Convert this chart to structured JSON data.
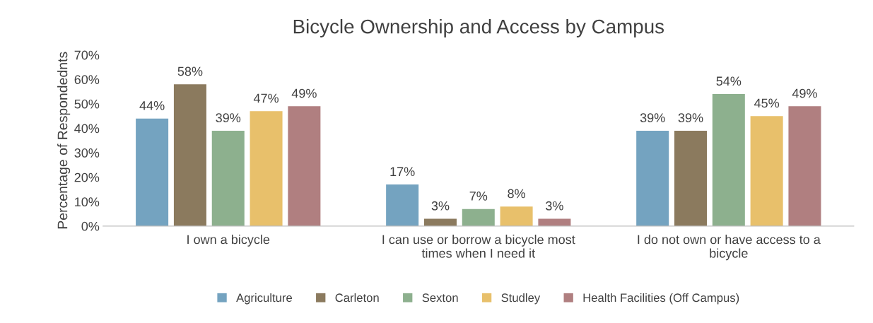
{
  "chart_data": {
    "type": "bar",
    "title": "Bicycle Ownership and Access by Campus",
    "ylabel": "Percentage of Respondednts",
    "categories": [
      "I own a bicycle",
      "I can use or borrow a bicycle most times when I need it",
      "I do not own or have access to a bicycle"
    ],
    "series": [
      {
        "name": "Agriculture",
        "color": "#74a3c0",
        "values": [
          44,
          17,
          39
        ],
        "value_labels": [
          "44%",
          "17%",
          "39%"
        ]
      },
      {
        "name": "Carleton",
        "color": "#8b7a5e",
        "values": [
          58,
          3,
          39
        ],
        "value_labels": [
          "58%",
          "3%",
          "39%"
        ]
      },
      {
        "name": "Sexton",
        "color": "#8db08e",
        "values": [
          39,
          7,
          54
        ],
        "value_labels": [
          "39%",
          "7%",
          "54%"
        ]
      },
      {
        "name": "Studley",
        "color": "#e8c06b",
        "values": [
          47,
          8,
          45
        ],
        "value_labels": [
          "47%",
          "8%",
          "45%"
        ]
      },
      {
        "name": "Health Facilities (Off Campus)",
        "color": "#b07f80",
        "values": [
          49,
          3,
          49
        ],
        "value_labels": [
          "49%",
          "3%",
          "49%"
        ]
      }
    ],
    "ylim": [
      0,
      70
    ],
    "yticks": [
      {
        "value": 0,
        "label": "0%"
      },
      {
        "value": 10,
        "label": "10%"
      },
      {
        "value": 20,
        "label": "20%"
      },
      {
        "value": 30,
        "label": "30%"
      },
      {
        "value": 40,
        "label": "40%"
      },
      {
        "value": 50,
        "label": "50%"
      },
      {
        "value": 60,
        "label": "60%"
      },
      {
        "value": 70,
        "label": "70%"
      }
    ],
    "grid": false,
    "legend": "bottom"
  }
}
